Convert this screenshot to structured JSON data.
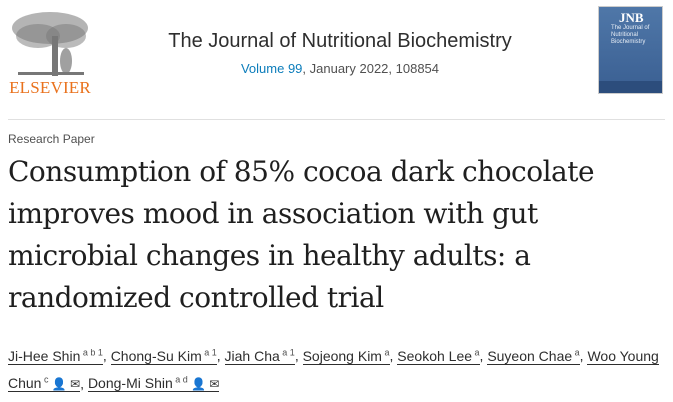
{
  "publisher": {
    "name": "ELSEVIER"
  },
  "journal": {
    "title": "The Journal of Nutritional Biochemistry",
    "volume_link": "Volume 99",
    "issue_info": ", January 2022, 108854",
    "cover": {
      "abbrev": "JNB",
      "name": "The Journal of Nutritional Biochemistry"
    }
  },
  "article": {
    "type": "Research Paper",
    "title": "Consumption of 85% cocoa dark chocolate improves mood in association with gut microbial changes in healthy adults: a randomized controlled trial"
  },
  "authors": [
    {
      "name": "Ji-Hee Shin",
      "sup": "a b 1"
    },
    {
      "name": "Chong-Su Kim",
      "sup": "a 1"
    },
    {
      "name": "Jiah Cha",
      "sup": "a 1"
    },
    {
      "name": "Sojeong Kim",
      "sup": "a"
    },
    {
      "name": "Seokoh Lee",
      "sup": "a"
    },
    {
      "name": "Suyeon Chae",
      "sup": "a"
    },
    {
      "name": "Woo Young Chun",
      "sup": "c",
      "icons": [
        "person-icon",
        "envelope-icon"
      ]
    },
    {
      "name": "Dong-Mi Shin",
      "sup": "a d",
      "icons": [
        "person-icon",
        "envelope-icon"
      ]
    }
  ],
  "colors": {
    "brand": "#e9711c",
    "link": "#0c7dbb"
  }
}
